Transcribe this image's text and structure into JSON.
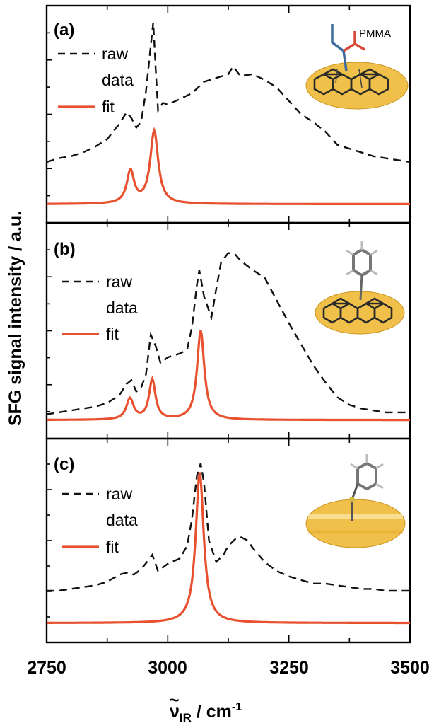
{
  "figure": {
    "ylabel": "SFG signal intensity / a.u.",
    "xlabel": {
      "main": "ν",
      "accent": "~",
      "sub": "IR",
      "unit": " / cm",
      "sup": "-1"
    },
    "xticks": [
      "2750",
      "3000",
      "3250",
      "3500"
    ]
  },
  "colors": {
    "raw": "#111111",
    "fit": "#e8512f",
    "gold": "#f0c04a",
    "frame": "#000000"
  },
  "panels": [
    {
      "label": "(a)",
      "legend": {
        "raw_line1": "raw",
        "raw_line2": "data",
        "fit": "fit"
      },
      "inset": {
        "molecule": "PMMA on graphene",
        "text": "PMMA",
        "icon": "pmma-graphene-molecule-icon"
      }
    },
    {
      "label": "(b)",
      "legend": {
        "raw_line1": "raw",
        "raw_line2": "data",
        "fit": "fit"
      },
      "inset": {
        "molecule": "phenyl on graphene",
        "text": "",
        "icon": "phenyl-graphene-molecule-icon"
      }
    },
    {
      "label": "(c)",
      "legend": {
        "raw_line1": "raw",
        "raw_line2": "data",
        "fit": "fit"
      },
      "inset": {
        "molecule": "thiophenol on gold",
        "text": "",
        "icon": "thiophenol-gold-molecule-icon"
      }
    }
  ],
  "chart_data": [
    {
      "type": "line",
      "panel": "(a)",
      "xlim": [
        2750,
        3500
      ],
      "ylim": [
        0,
        1
      ],
      "series": [
        {
          "name": "raw data",
          "style": "dashed",
          "x": [
            2750,
            2775,
            2800,
            2825,
            2850,
            2875,
            2900,
            2915,
            2925,
            2935,
            2945,
            2955,
            2965,
            2970,
            2975,
            2980,
            2990,
            3000,
            3025,
            3050,
            3075,
            3100,
            3125,
            3135,
            3150,
            3175,
            3200,
            3225,
            3250,
            3275,
            3300,
            3325,
            3350,
            3375,
            3400,
            3425,
            3450,
            3475,
            3500
          ],
          "y": [
            0.25,
            0.27,
            0.28,
            0.3,
            0.33,
            0.37,
            0.45,
            0.51,
            0.48,
            0.43,
            0.46,
            0.62,
            0.86,
            0.98,
            0.74,
            0.52,
            0.56,
            0.55,
            0.58,
            0.61,
            0.67,
            0.69,
            0.71,
            0.75,
            0.7,
            0.71,
            0.68,
            0.64,
            0.57,
            0.5,
            0.46,
            0.41,
            0.34,
            0.32,
            0.3,
            0.28,
            0.27,
            0.26,
            0.25
          ]
        },
        {
          "name": "fit",
          "style": "solid",
          "peaks": [
            {
              "center": 2923,
              "height": 0.17,
              "hwhm": 9
            },
            {
              "center": 2972,
              "height": 0.38,
              "hwhm": 10
            }
          ],
          "baseline": 0.03
        }
      ]
    },
    {
      "type": "line",
      "panel": "(b)",
      "xlim": [
        2750,
        3500
      ],
      "ylim": [
        0,
        1
      ],
      "series": [
        {
          "name": "raw data",
          "style": "dashed",
          "x": [
            2750,
            2775,
            2800,
            2825,
            2850,
            2875,
            2900,
            2915,
            2925,
            2935,
            2945,
            2955,
            2965,
            2975,
            2985,
            3000,
            3025,
            3040,
            3050,
            3060,
            3065,
            3075,
            3090,
            3100,
            3110,
            3125,
            3140,
            3150,
            3175,
            3200,
            3225,
            3250,
            3275,
            3300,
            3325,
            3350,
            3375,
            3400,
            3425,
            3450,
            3475,
            3500
          ],
          "y": [
            0.06,
            0.07,
            0.08,
            0.09,
            0.1,
            0.12,
            0.16,
            0.22,
            0.24,
            0.18,
            0.2,
            0.27,
            0.48,
            0.42,
            0.33,
            0.36,
            0.38,
            0.4,
            0.52,
            0.74,
            0.82,
            0.68,
            0.57,
            0.72,
            0.86,
            0.91,
            0.9,
            0.87,
            0.82,
            0.78,
            0.66,
            0.54,
            0.43,
            0.32,
            0.23,
            0.15,
            0.11,
            0.09,
            0.08,
            0.07,
            0.07,
            0.07
          ]
        },
        {
          "name": "fit",
          "style": "solid",
          "peaks": [
            {
              "center": 2922,
              "height": 0.11,
              "hwhm": 9
            },
            {
              "center": 2968,
              "height": 0.21,
              "hwhm": 8
            },
            {
              "center": 3068,
              "height": 0.47,
              "hwhm": 9
            }
          ],
          "baseline": 0.03
        }
      ]
    },
    {
      "type": "line",
      "panel": "(c)",
      "xlim": [
        2750,
        3500
      ],
      "ylim": [
        0,
        1
      ],
      "series": [
        {
          "name": "raw data",
          "style": "dashed",
          "x": [
            2750,
            2775,
            2800,
            2825,
            2850,
            2875,
            2900,
            2915,
            2930,
            2945,
            2960,
            2968,
            2980,
            3000,
            3025,
            3040,
            3050,
            3060,
            3068,
            3075,
            3085,
            3100,
            3115,
            3125,
            3140,
            3150,
            3165,
            3175,
            3200,
            3225,
            3250,
            3275,
            3300,
            3325,
            3350,
            3375,
            3400,
            3425,
            3450,
            3475,
            3500
          ],
          "y": [
            0.22,
            0.22,
            0.23,
            0.24,
            0.25,
            0.27,
            0.31,
            0.32,
            0.31,
            0.34,
            0.39,
            0.42,
            0.33,
            0.37,
            0.4,
            0.47,
            0.62,
            0.86,
            0.93,
            0.82,
            0.5,
            0.38,
            0.42,
            0.47,
            0.51,
            0.52,
            0.5,
            0.46,
            0.38,
            0.33,
            0.3,
            0.28,
            0.26,
            0.26,
            0.25,
            0.24,
            0.23,
            0.23,
            0.22,
            0.22,
            0.22
          ]
        },
        {
          "name": "fit",
          "style": "solid",
          "peaks": [
            {
              "center": 3066,
              "height": 0.84,
              "hwhm": 10
            }
          ],
          "baseline": 0.04
        }
      ]
    }
  ]
}
